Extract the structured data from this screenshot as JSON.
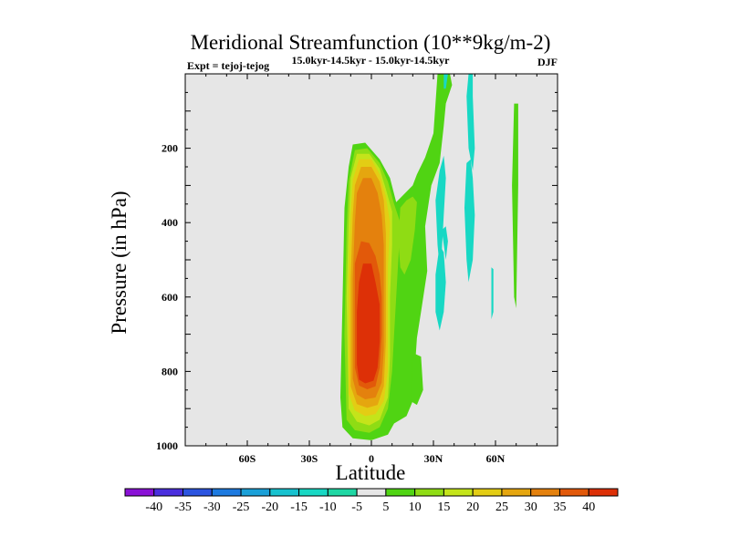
{
  "chart_data": {
    "type": "heatmap",
    "title": "Meridional Streamfunction (10**9kg/m-2)",
    "subtitle_left": "Expt = tejoj-tejog",
    "subtitle_center": "15.0kyr-14.5kyr - 15.0kyr-14.5kyr",
    "subtitle_right": "DJF",
    "xlabel": "Latitude",
    "ylabel": "Pressure (in hPa)",
    "xlim": [
      -90,
      90
    ],
    "ylim": [
      1000,
      0
    ],
    "xticks": [
      {
        "value": -60,
        "label": "60S"
      },
      {
        "value": -30,
        "label": "30S"
      },
      {
        "value": 0,
        "label": "0"
      },
      {
        "value": 30,
        "label": "30N"
      },
      {
        "value": 60,
        "label": "60N"
      }
    ],
    "yticks": [
      {
        "value": 200,
        "label": "200"
      },
      {
        "value": 400,
        "label": "400"
      },
      {
        "value": 600,
        "label": "600"
      },
      {
        "value": 800,
        "label": "800"
      },
      {
        "value": 1000,
        "label": "1000"
      }
    ],
    "background_color": "#e6e6e6",
    "colorbar": {
      "boundaries": [
        "-40",
        "-35",
        "-30",
        "-25",
        "-20",
        "-15",
        "-10",
        "-5",
        "5",
        "10",
        "15",
        "20",
        "25",
        "30",
        "35",
        "40"
      ],
      "colors": [
        "#8a11d6",
        "#4a2fde",
        "#2b54e0",
        "#1d7ae0",
        "#1aa0d8",
        "#17c2cf",
        "#18d8c4",
        "#1fd7a4",
        "#e6e6e6",
        "#50d413",
        "#8fdc14",
        "#c4e41a",
        "#e3cd14",
        "#e5a60f",
        "#e4810d",
        "#e2590a",
        "#dd3007"
      ]
    },
    "contour_fields": [
      {
        "level": 5,
        "color": "#50d413",
        "polygon": [
          [
            -9,
            190
          ],
          [
            -3,
            185
          ],
          [
            4,
            230
          ],
          [
            9,
            280
          ],
          [
            12,
            345
          ],
          [
            20,
            300
          ],
          [
            22,
            270
          ],
          [
            26,
            225
          ],
          [
            30,
            160
          ],
          [
            32,
            0
          ],
          [
            38,
            0
          ],
          [
            39,
            30
          ],
          [
            36,
            80
          ],
          [
            35,
            140
          ],
          [
            33,
            240
          ],
          [
            29,
            300
          ],
          [
            26,
            410
          ],
          [
            27,
            530
          ],
          [
            24,
            640
          ],
          [
            22,
            710
          ],
          [
            20,
            880
          ],
          [
            17,
            920
          ],
          [
            11,
            940
          ],
          [
            8,
            970
          ],
          [
            0,
            985
          ],
          [
            -9,
            980
          ],
          [
            -14,
            950
          ],
          [
            -15,
            870
          ],
          [
            -14,
            620
          ],
          [
            -13,
            360
          ],
          [
            -11,
            250
          ]
        ]
      },
      {
        "level": 5,
        "color": "#50d413",
        "polygon": [
          [
            20,
            750
          ],
          [
            24,
            760
          ],
          [
            25,
            850
          ],
          [
            22,
            890
          ],
          [
            19,
            880
          ]
        ]
      },
      {
        "level": 5,
        "color": "#50d413",
        "polygon": [
          [
            69,
            80
          ],
          [
            71,
            80
          ],
          [
            71,
            300
          ],
          [
            70,
            630
          ],
          [
            69,
            600
          ],
          [
            68,
            300
          ]
        ]
      },
      {
        "level": 10,
        "color": "#8fdc14",
        "polygon": [
          [
            -8,
            205
          ],
          [
            -2,
            200
          ],
          [
            4,
            240
          ],
          [
            8,
            290
          ],
          [
            11,
            350
          ],
          [
            14,
            400
          ],
          [
            13,
            500
          ],
          [
            12,
            600
          ],
          [
            11,
            700
          ],
          [
            10,
            800
          ],
          [
            8,
            900
          ],
          [
            4,
            950
          ],
          [
            -1,
            965
          ],
          [
            -8,
            958
          ],
          [
            -12,
            930
          ],
          [
            -13,
            700
          ],
          [
            -12,
            420
          ],
          [
            -11,
            290
          ]
        ]
      },
      {
        "level": 10,
        "color": "#8fdc14",
        "polygon": [
          [
            14,
            360
          ],
          [
            17,
            340
          ],
          [
            20,
            330
          ],
          [
            22,
            345
          ],
          [
            21,
            420
          ],
          [
            19,
            500
          ],
          [
            16,
            540
          ],
          [
            14,
            520
          ],
          [
            13,
            450
          ]
        ]
      },
      {
        "level": 15,
        "color": "#c4e41a",
        "polygon": [
          [
            -7,
            215
          ],
          [
            -1,
            215
          ],
          [
            4,
            255
          ],
          [
            7,
            310
          ],
          [
            10,
            370
          ],
          [
            10,
            460
          ],
          [
            9,
            600
          ],
          [
            9,
            760
          ],
          [
            8,
            870
          ],
          [
            4,
            930
          ],
          [
            -1,
            945
          ],
          [
            -7,
            935
          ],
          [
            -11,
            900
          ],
          [
            -12,
            600
          ],
          [
            -11,
            400
          ],
          [
            -10,
            280
          ]
        ]
      },
      {
        "level": 20,
        "color": "#e3cd14",
        "polygon": [
          [
            -6,
            230
          ],
          [
            0,
            230
          ],
          [
            4,
            270
          ],
          [
            7,
            330
          ],
          [
            9,
            400
          ],
          [
            8,
            520
          ],
          [
            8,
            650
          ],
          [
            8,
            800
          ],
          [
            6,
            880
          ],
          [
            2,
            915
          ],
          [
            -3,
            920
          ],
          [
            -8,
            905
          ],
          [
            -11,
            860
          ],
          [
            -11,
            550
          ],
          [
            -10,
            380
          ],
          [
            -9,
            285
          ]
        ]
      },
      {
        "level": 25,
        "color": "#e5a60f",
        "polygon": [
          [
            -5,
            250
          ],
          [
            0,
            250
          ],
          [
            4,
            290
          ],
          [
            6,
            340
          ],
          [
            7,
            430
          ],
          [
            7,
            560
          ],
          [
            7,
            720
          ],
          [
            6,
            840
          ],
          [
            3,
            890
          ],
          [
            -2,
            898
          ],
          [
            -7,
            888
          ],
          [
            -10,
            840
          ],
          [
            -10,
            550
          ],
          [
            -9,
            380
          ],
          [
            -8,
            300
          ]
        ]
      },
      {
        "level": 30,
        "color": "#e4810d",
        "polygon": [
          [
            -4,
            280
          ],
          [
            0,
            280
          ],
          [
            3,
            320
          ],
          [
            5,
            380
          ],
          [
            6,
            460
          ],
          [
            6,
            600
          ],
          [
            6,
            740
          ],
          [
            5,
            830
          ],
          [
            2,
            870
          ],
          [
            -3,
            875
          ],
          [
            -7,
            862
          ],
          [
            -9,
            820
          ],
          [
            -9,
            550
          ],
          [
            -8,
            400
          ],
          [
            -7,
            320
          ]
        ]
      },
      {
        "level": 35,
        "color": "#e2590a",
        "polygon": [
          [
            -5,
            450
          ],
          [
            -1,
            455
          ],
          [
            2,
            490
          ],
          [
            4,
            540
          ],
          [
            5,
            600
          ],
          [
            5,
            700
          ],
          [
            4,
            790
          ],
          [
            2,
            840
          ],
          [
            -2,
            848
          ],
          [
            -6,
            838
          ],
          [
            -8,
            790
          ],
          [
            -8,
            600
          ],
          [
            -8,
            510
          ]
        ]
      },
      {
        "level": 40,
        "color": "#dd3007",
        "polygon": [
          [
            -4,
            510
          ],
          [
            0,
            510
          ],
          [
            2,
            560
          ],
          [
            4,
            620
          ],
          [
            4,
            720
          ],
          [
            3,
            790
          ],
          [
            1,
            825
          ],
          [
            -3,
            832
          ],
          [
            -6,
            822
          ],
          [
            -7,
            780
          ],
          [
            -7,
            640
          ],
          [
            -6,
            560
          ]
        ]
      },
      {
        "level": -5,
        "color": "#18d8c4",
        "polygon": [
          [
            31,
            340
          ],
          [
            33,
            260
          ],
          [
            35,
            220
          ],
          [
            36,
            280
          ],
          [
            35,
            380
          ],
          [
            34,
            480
          ],
          [
            33,
            520
          ],
          [
            32,
            460
          ]
        ]
      },
      {
        "level": -5,
        "color": "#18d8c4",
        "polygon": [
          [
            34,
            420
          ],
          [
            36,
            410
          ],
          [
            37,
            450
          ],
          [
            36,
            500
          ]
        ]
      },
      {
        "level": -5,
        "color": "#18d8c4",
        "polygon": [
          [
            31,
            540
          ],
          [
            33,
            460
          ],
          [
            35,
            480
          ],
          [
            36,
            560
          ],
          [
            35,
            640
          ],
          [
            33,
            690
          ],
          [
            31,
            640
          ]
        ]
      },
      {
        "level": -5,
        "color": "#18d8c4",
        "polygon": [
          [
            35,
            0
          ],
          [
            37,
            0
          ],
          [
            36,
            40
          ],
          [
            35,
            40
          ]
        ]
      },
      {
        "level": -5,
        "color": "#18d8c4",
        "polygon": [
          [
            47,
            0
          ],
          [
            49,
            0
          ],
          [
            49,
            60
          ],
          [
            50,
            200
          ],
          [
            49,
            260
          ],
          [
            47,
            200
          ],
          [
            46,
            60
          ]
        ]
      },
      {
        "level": -5,
        "color": "#18d8c4",
        "polygon": [
          [
            46,
            240
          ],
          [
            48,
            230
          ],
          [
            49,
            280
          ],
          [
            50,
            380
          ],
          [
            49,
            500
          ],
          [
            47,
            560
          ],
          [
            46,
            500
          ],
          [
            45,
            360
          ]
        ]
      },
      {
        "level": -5,
        "color": "#18d8c4",
        "polygon": [
          [
            58,
            520
          ],
          [
            59,
            525
          ],
          [
            59,
            640
          ],
          [
            58,
            660
          ],
          [
            58,
            600
          ]
        ]
      }
    ]
  }
}
